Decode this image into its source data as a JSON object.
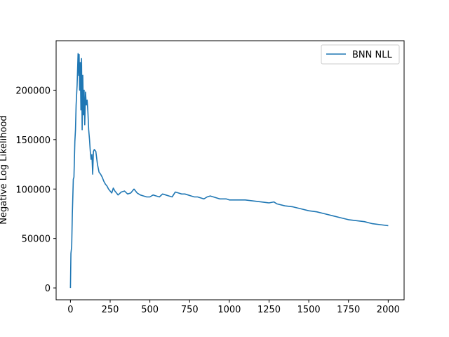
{
  "chart_data": {
    "type": "line",
    "title": "",
    "xlabel": "",
    "ylabel": "Negative Log Likelihood",
    "xlim": [
      -90,
      2100
    ],
    "ylim": [
      -12000,
      250000
    ],
    "x_ticks": [
      0,
      250,
      500,
      750,
      1000,
      1250,
      1500,
      1750,
      2000
    ],
    "x_tick_labels": [
      "0",
      "250",
      "500",
      "750",
      "1000",
      "1250",
      "1500",
      "1750",
      "2000"
    ],
    "y_ticks": [
      0,
      50000,
      100000,
      150000,
      200000
    ],
    "y_tick_labels": [
      "0",
      "50000",
      "100000",
      "150000",
      "200000"
    ],
    "grid": false,
    "legend_position": "top-right",
    "series": [
      {
        "name": "BNN NLL",
        "color": "#1f77b4",
        "x": [
          0,
          3,
          8,
          12,
          15,
          18,
          22,
          28,
          32,
          36,
          42,
          48,
          52,
          55,
          58,
          62,
          66,
          70,
          74,
          78,
          82,
          86,
          90,
          95,
          100,
          105,
          110,
          115,
          120,
          125,
          130,
          135,
          140,
          145,
          150,
          160,
          170,
          180,
          190,
          200,
          210,
          220,
          230,
          240,
          250,
          260,
          270,
          280,
          290,
          300,
          320,
          340,
          360,
          380,
          400,
          420,
          440,
          460,
          480,
          500,
          520,
          540,
          560,
          580,
          600,
          620,
          640,
          660,
          680,
          700,
          720,
          740,
          760,
          780,
          800,
          820,
          840,
          860,
          880,
          900,
          920,
          940,
          960,
          980,
          1000,
          1050,
          1100,
          1150,
          1200,
          1250,
          1280,
          1300,
          1350,
          1400,
          1450,
          1500,
          1550,
          1600,
          1650,
          1700,
          1750,
          1800,
          1850,
          1900,
          1950,
          2000
        ],
        "values": [
          0,
          35000,
          42000,
          75000,
          92000,
          110000,
          112000,
          148000,
          160000,
          185000,
          205000,
          237000,
          215000,
          236000,
          200000,
          228000,
          180000,
          232000,
          160000,
          215000,
          175000,
          200000,
          165000,
          198000,
          185000,
          190000,
          178000,
          160000,
          150000,
          138000,
          130000,
          135000,
          115000,
          138000,
          140000,
          138000,
          125000,
          117000,
          115000,
          112000,
          108000,
          105000,
          103000,
          100000,
          98000,
          96000,
          101000,
          98000,
          96000,
          94000,
          97000,
          98000,
          95000,
          96000,
          100000,
          96000,
          94000,
          93000,
          92000,
          92000,
          94000,
          93000,
          92000,
          95000,
          94000,
          93000,
          92000,
          97000,
          96000,
          95000,
          95000,
          94000,
          93000,
          92000,
          92000,
          91000,
          90000,
          92000,
          93000,
          92000,
          91000,
          90000,
          90000,
          90000,
          89000,
          89000,
          89000,
          88000,
          87000,
          86000,
          87000,
          85000,
          83000,
          82000,
          80000,
          78000,
          77000,
          75000,
          73000,
          71000,
          69000,
          68000,
          67000,
          65000,
          64000,
          63000
        ]
      }
    ]
  }
}
